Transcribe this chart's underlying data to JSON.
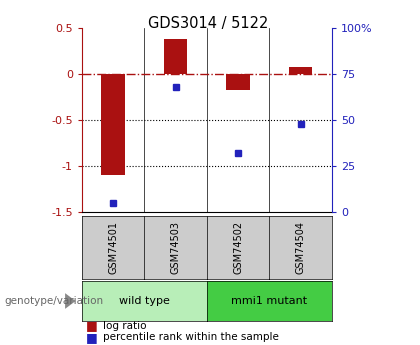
{
  "title": "GDS3014 / 5122",
  "samples": [
    "GSM74501",
    "GSM74503",
    "GSM74502",
    "GSM74504"
  ],
  "log_ratios": [
    -1.1,
    0.38,
    -0.18,
    0.07
  ],
  "percentile_ranks": [
    5,
    68,
    32,
    48
  ],
  "bar_color": "#AA1111",
  "dot_color": "#2222BB",
  "ylim_left": [
    -1.5,
    0.5
  ],
  "ylim_right": [
    0,
    100
  ],
  "yticks_left": [
    0.5,
    0,
    -0.5,
    -1.0,
    -1.5
  ],
  "yticks_right": [
    100,
    75,
    50,
    25,
    0
  ],
  "dotted_lines": [
    -0.5,
    -1.0
  ],
  "wt_color": "#b8eeb8",
  "mut_color": "#44cc44",
  "sample_box_color": "#cccccc",
  "group_label": "genotype/variation",
  "background_color": "#ffffff"
}
